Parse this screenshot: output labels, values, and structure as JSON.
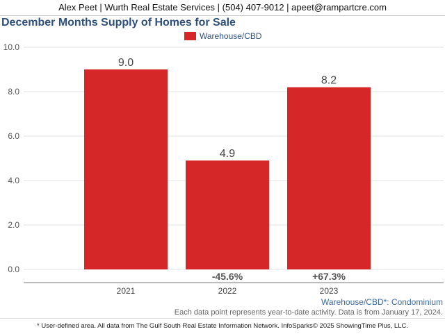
{
  "header": {
    "contact": "Alex Peet | Wurth Real Estate Services | (504) 407-9012 | apeet@rampartcre.com"
  },
  "chart_data": {
    "type": "bar",
    "title": "December Months Supply of Homes for Sale",
    "categories": [
      "2021",
      "2022",
      "2023"
    ],
    "series": [
      {
        "name": "Warehouse/CBD",
        "values": [
          9.0,
          4.9,
          8.2
        ],
        "labels": [
          "9.0",
          "4.9",
          "8.2"
        ],
        "color": "#d62728"
      }
    ],
    "changes": [
      "",
      "-45.6%",
      "+67.3%"
    ],
    "yticks": [
      "0.0",
      "2.0",
      "4.0",
      "6.0",
      "8.0",
      "10.0"
    ],
    "ylim": [
      0,
      10
    ],
    "xlabel": "",
    "ylabel": "",
    "grid": true,
    "legend_position": "top-center"
  },
  "notes": {
    "filter": "Warehouse/CBD*: Condominium",
    "activity": "Each data point represents year-to-date activity. Data is from January 17, 2024."
  },
  "footer": {
    "text": "* User-defined area. All data from The Gulf South Real Estate Information Network. InfoSparks© 2025 ShowingTime Plus, LLC."
  }
}
